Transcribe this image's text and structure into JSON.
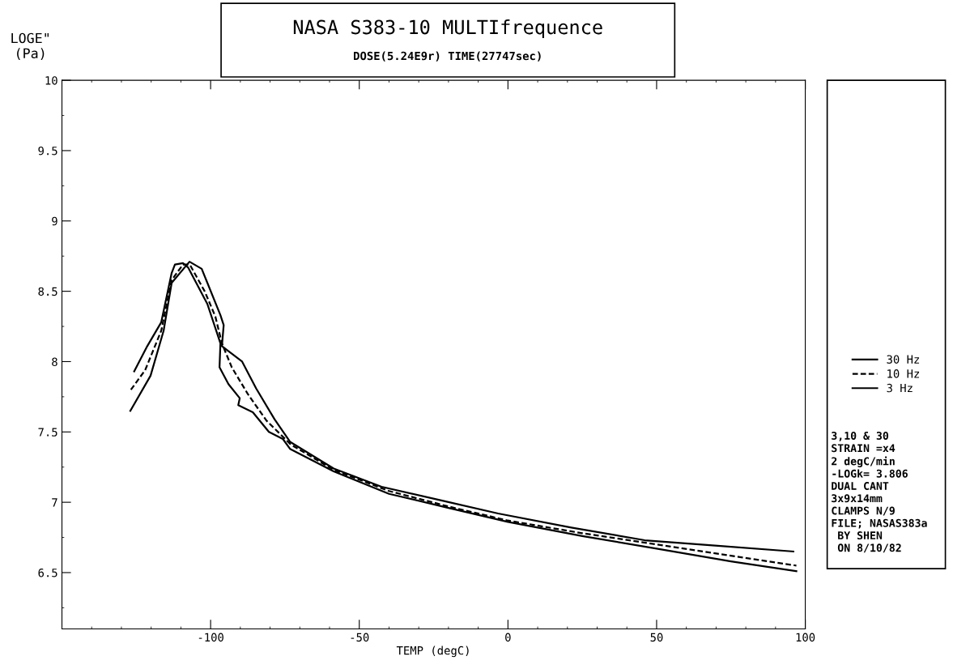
{
  "chart_data": {
    "type": "line",
    "title": "NASA S383-10 MULTIfrequence",
    "subtitle": "DOSE(5.24E9r) TIME(27747sec)",
    "xlabel": "TEMP (degC)",
    "ylabel": "LOGE\"\n(Pa)",
    "xlim": [
      -150,
      100
    ],
    "xticks": [
      -100,
      -50,
      0,
      50,
      100
    ],
    "ylim": [
      6.1,
      10
    ],
    "yticks": [
      6.5,
      7,
      7.5,
      8,
      8.5,
      9,
      9.5,
      10
    ],
    "grid": false,
    "legend": "right",
    "marker": "none",
    "series": [
      {
        "name": "30 Hz",
        "color": "#000000",
        "line_style": "solid",
        "x": [
          -127,
          -120.2,
          -115.8,
          -113.1,
          -107.1,
          -103,
          -96.7,
          -95.6,
          -96.2,
          -89.4,
          -84.7,
          -78.5,
          -73.3,
          -58.6,
          -42.5,
          -21.8,
          -3.3,
          21.3,
          46,
          70.6,
          96
        ],
        "values": [
          7.65,
          7.9,
          8.22,
          8.56,
          8.71,
          8.66,
          8.33,
          8.26,
          8.11,
          8.0,
          7.81,
          7.59,
          7.43,
          7.24,
          7.11,
          7.01,
          6.92,
          6.82,
          6.73,
          6.69,
          6.65
        ]
      },
      {
        "name": "10 Hz",
        "color": "#000000",
        "line_style": "dashed",
        "x": [
          -126.8,
          -122,
          -116.6,
          -113.1,
          -109.3,
          -107,
          -102,
          -98.4,
          -96.2,
          -92.9,
          -87.5,
          -81.2,
          -73,
          -58.6,
          -40,
          -20,
          0,
          25,
          50,
          75,
          97
        ],
        "values": [
          7.8,
          7.94,
          8.22,
          8.58,
          8.69,
          8.69,
          8.5,
          8.32,
          8.13,
          7.96,
          7.77,
          7.58,
          7.41,
          7.23,
          7.08,
          6.97,
          6.87,
          6.78,
          6.7,
          6.62,
          6.55
        ]
      },
      {
        "name": "3 Hz",
        "color": "#000000",
        "line_style": "solid",
        "x": [
          -125.7,
          -121.3,
          -116.6,
          -113.1,
          -112,
          -109.3,
          -107.6,
          -101.1,
          -96.7,
          -97,
          -94,
          -90.2,
          -90.7,
          -85.8,
          -80.4,
          -75.7,
          -73.3,
          -58.6,
          -40,
          -20,
          0,
          25,
          50,
          75,
          97
        ],
        "values": [
          7.93,
          8.11,
          8.28,
          8.63,
          8.69,
          8.7,
          8.67,
          8.41,
          8.13,
          7.96,
          7.84,
          7.74,
          7.69,
          7.64,
          7.5,
          7.45,
          7.38,
          7.22,
          7.06,
          6.96,
          6.86,
          6.76,
          6.67,
          6.58,
          6.51
        ]
      }
    ],
    "annotations": [
      "3,10 & 30",
      "STRAIN =x4",
      "2 degC/min",
      "-LOGk= 3.806",
      "DUAL CANT",
      "3x9x14mm",
      "CLAMPS N/9",
      "FILE; NASAS383a",
      " BY SHEN",
      " ON 8/10/82"
    ]
  }
}
